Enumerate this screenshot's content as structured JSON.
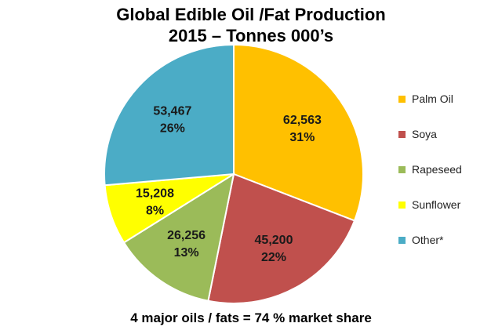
{
  "chart_data": {
    "type": "pie",
    "title_lines": [
      "Global Edible Oil /Fat Production",
      "2015 – Tonnes 000’s"
    ],
    "footer": "4 major oils / fats = 74 % market share",
    "legend_position": "right",
    "series": [
      {
        "name": "Palm Oil",
        "value": 62563,
        "value_label": "62,563",
        "percent_label": "31%",
        "color": "#FFC000"
      },
      {
        "name": "Soya",
        "value": 45200,
        "value_label": "45,200",
        "percent_label": "22%",
        "color": "#C0504D"
      },
      {
        "name": "Rapeseed",
        "value": 26256,
        "value_label": "26,256",
        "percent_label": "13%",
        "color": "#9BBB59"
      },
      {
        "name": "Sunflower",
        "value": 15208,
        "value_label": "15,208",
        "percent_label": "8%",
        "color": "#FFFF00"
      },
      {
        "name": "Other*",
        "value": 53467,
        "value_label": "53,467",
        "percent_label": "26%",
        "color": "#4BACC6"
      }
    ]
  }
}
